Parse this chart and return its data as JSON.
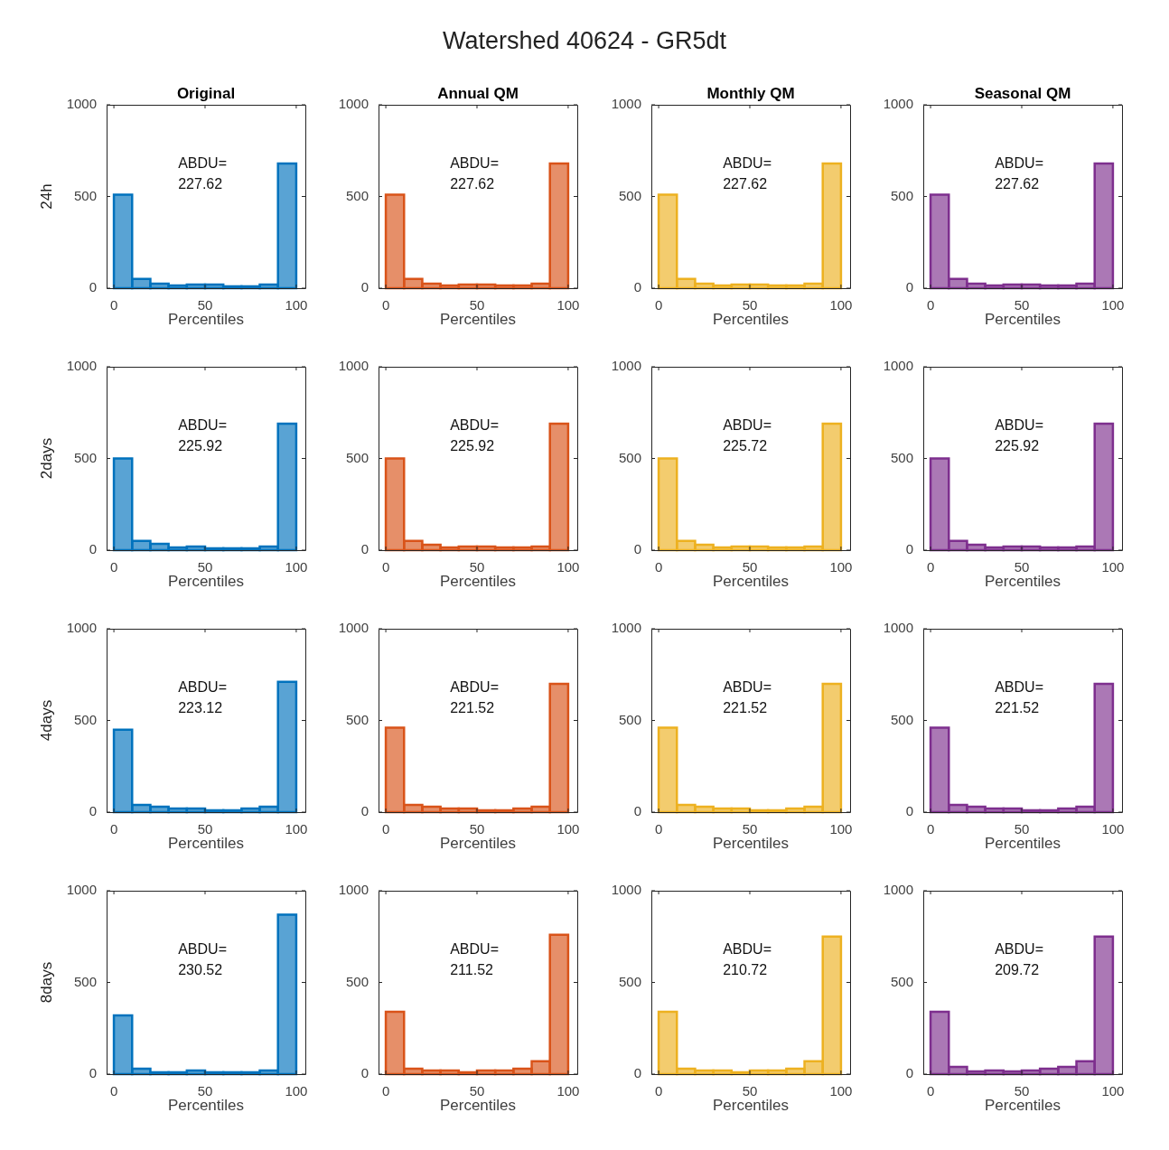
{
  "chart_data": [
    {
      "type": "other",
      "title": "Watershed 40624 - GR5dt"
    },
    {
      "type": "histogram",
      "title": "Original",
      "ylabel": "24h",
      "xlabel": "Percentiles",
      "color": "#0072bd",
      "bins": [
        0,
        10,
        20,
        30,
        40,
        50,
        60,
        70,
        80,
        90,
        100
      ],
      "values": [
        510,
        50,
        25,
        15,
        20,
        20,
        10,
        10,
        20,
        680
      ],
      "xlim": [
        -4,
        105
      ],
      "xticks": [
        0,
        50,
        100
      ],
      "ylim": [
        0,
        1000
      ],
      "yticks": [
        0,
        500,
        1000
      ],
      "annotations": [
        "ABDU=\n227.62"
      ]
    },
    {
      "type": "histogram",
      "title": "Annual QM",
      "xlabel": "Percentiles",
      "color": "#d95319",
      "bins": [
        0,
        10,
        20,
        30,
        40,
        50,
        60,
        70,
        80,
        90,
        100
      ],
      "values": [
        510,
        50,
        25,
        15,
        20,
        20,
        15,
        15,
        25,
        680
      ],
      "xlim": [
        -4,
        105
      ],
      "xticks": [
        0,
        50,
        100
      ],
      "ylim": [
        0,
        1000
      ],
      "yticks": [
        0,
        500,
        1000
      ],
      "annotations": [
        "ABDU=\n227.62"
      ]
    },
    {
      "type": "histogram",
      "title": "Monthly QM",
      "xlabel": "Percentiles",
      "color": "#edb120",
      "bins": [
        0,
        10,
        20,
        30,
        40,
        50,
        60,
        70,
        80,
        90,
        100
      ],
      "values": [
        510,
        50,
        25,
        15,
        20,
        20,
        15,
        15,
        25,
        680
      ],
      "xlim": [
        -4,
        105
      ],
      "xticks": [
        0,
        50,
        100
      ],
      "ylim": [
        0,
        1000
      ],
      "yticks": [
        0,
        500,
        1000
      ],
      "annotations": [
        "ABDU=\n227.62"
      ]
    },
    {
      "type": "histogram",
      "title": "Seasonal QM",
      "xlabel": "Percentiles",
      "color": "#7e2f8e",
      "bins": [
        0,
        10,
        20,
        30,
        40,
        50,
        60,
        70,
        80,
        90,
        100
      ],
      "values": [
        510,
        50,
        25,
        15,
        20,
        20,
        15,
        15,
        25,
        680
      ],
      "xlim": [
        -4,
        105
      ],
      "xticks": [
        0,
        50,
        100
      ],
      "ylim": [
        0,
        1000
      ],
      "yticks": [
        0,
        500,
        1000
      ],
      "annotations": [
        "ABDU=\n227.62"
      ]
    },
    {
      "type": "histogram",
      "ylabel": "2days",
      "xlabel": "Percentiles",
      "color": "#0072bd",
      "bins": [
        0,
        10,
        20,
        30,
        40,
        50,
        60,
        70,
        80,
        90,
        100
      ],
      "values": [
        500,
        50,
        35,
        15,
        20,
        10,
        10,
        10,
        20,
        690
      ],
      "xlim": [
        -4,
        105
      ],
      "xticks": [
        0,
        50,
        100
      ],
      "ylim": [
        0,
        1000
      ],
      "yticks": [
        0,
        500,
        1000
      ],
      "annotations": [
        "ABDU=\n225.92"
      ]
    },
    {
      "type": "histogram",
      "xlabel": "Percentiles",
      "color": "#d95319",
      "bins": [
        0,
        10,
        20,
        30,
        40,
        50,
        60,
        70,
        80,
        90,
        100
      ],
      "values": [
        500,
        50,
        30,
        15,
        20,
        20,
        15,
        15,
        20,
        690
      ],
      "xlim": [
        -4,
        105
      ],
      "xticks": [
        0,
        50,
        100
      ],
      "ylim": [
        0,
        1000
      ],
      "yticks": [
        0,
        500,
        1000
      ],
      "annotations": [
        "ABDU=\n225.92"
      ]
    },
    {
      "type": "histogram",
      "xlabel": "Percentiles",
      "color": "#edb120",
      "bins": [
        0,
        10,
        20,
        30,
        40,
        50,
        60,
        70,
        80,
        90,
        100
      ],
      "values": [
        500,
        50,
        30,
        15,
        20,
        20,
        15,
        15,
        20,
        690
      ],
      "xlim": [
        -4,
        105
      ],
      "xticks": [
        0,
        50,
        100
      ],
      "ylim": [
        0,
        1000
      ],
      "yticks": [
        0,
        500,
        1000
      ],
      "annotations": [
        "ABDU=\n225.72"
      ]
    },
    {
      "type": "histogram",
      "xlabel": "Percentiles",
      "color": "#7e2f8e",
      "bins": [
        0,
        10,
        20,
        30,
        40,
        50,
        60,
        70,
        80,
        90,
        100
      ],
      "values": [
        500,
        50,
        30,
        15,
        20,
        20,
        15,
        15,
        20,
        690
      ],
      "xlim": [
        -4,
        105
      ],
      "xticks": [
        0,
        50,
        100
      ],
      "ylim": [
        0,
        1000
      ],
      "yticks": [
        0,
        500,
        1000
      ],
      "annotations": [
        "ABDU=\n225.92"
      ]
    },
    {
      "type": "histogram",
      "ylabel": "4days",
      "xlabel": "Percentiles",
      "color": "#0072bd",
      "bins": [
        0,
        10,
        20,
        30,
        40,
        50,
        60,
        70,
        80,
        90,
        100
      ],
      "values": [
        450,
        40,
        30,
        20,
        20,
        10,
        10,
        20,
        30,
        710
      ],
      "xlim": [
        -4,
        105
      ],
      "xticks": [
        0,
        50,
        100
      ],
      "ylim": [
        0,
        1000
      ],
      "yticks": [
        0,
        500,
        1000
      ],
      "annotations": [
        "ABDU=\n223.12"
      ]
    },
    {
      "type": "histogram",
      "xlabel": "Percentiles",
      "color": "#d95319",
      "bins": [
        0,
        10,
        20,
        30,
        40,
        50,
        60,
        70,
        80,
        90,
        100
      ],
      "values": [
        460,
        40,
        30,
        20,
        20,
        10,
        10,
        20,
        30,
        700
      ],
      "xlim": [
        -4,
        105
      ],
      "xticks": [
        0,
        50,
        100
      ],
      "ylim": [
        0,
        1000
      ],
      "yticks": [
        0,
        500,
        1000
      ],
      "annotations": [
        "ABDU=\n221.52"
      ]
    },
    {
      "type": "histogram",
      "xlabel": "Percentiles",
      "color": "#edb120",
      "bins": [
        0,
        10,
        20,
        30,
        40,
        50,
        60,
        70,
        80,
        90,
        100
      ],
      "values": [
        460,
        40,
        30,
        20,
        20,
        10,
        10,
        20,
        30,
        700
      ],
      "xlim": [
        -4,
        105
      ],
      "xticks": [
        0,
        50,
        100
      ],
      "ylim": [
        0,
        1000
      ],
      "yticks": [
        0,
        500,
        1000
      ],
      "annotations": [
        "ABDU=\n221.52"
      ]
    },
    {
      "type": "histogram",
      "xlabel": "Percentiles",
      "color": "#7e2f8e",
      "bins": [
        0,
        10,
        20,
        30,
        40,
        50,
        60,
        70,
        80,
        90,
        100
      ],
      "values": [
        460,
        40,
        30,
        20,
        20,
        10,
        10,
        20,
        30,
        700
      ],
      "xlim": [
        -4,
        105
      ],
      "xticks": [
        0,
        50,
        100
      ],
      "ylim": [
        0,
        1000
      ],
      "yticks": [
        0,
        500,
        1000
      ],
      "annotations": [
        "ABDU=\n221.52"
      ]
    },
    {
      "type": "histogram",
      "ylabel": "8days",
      "xlabel": "Percentiles",
      "color": "#0072bd",
      "bins": [
        0,
        10,
        20,
        30,
        40,
        50,
        60,
        70,
        80,
        90,
        100
      ],
      "values": [
        320,
        30,
        10,
        10,
        20,
        10,
        10,
        10,
        20,
        870
      ],
      "xlim": [
        -4,
        105
      ],
      "xticks": [
        0,
        50,
        100
      ],
      "ylim": [
        0,
        1000
      ],
      "yticks": [
        0,
        500,
        1000
      ],
      "annotations": [
        "ABDU=\n230.52"
      ]
    },
    {
      "type": "histogram",
      "xlabel": "Percentiles",
      "color": "#d95319",
      "bins": [
        0,
        10,
        20,
        30,
        40,
        50,
        60,
        70,
        80,
        90,
        100
      ],
      "values": [
        340,
        30,
        20,
        20,
        10,
        20,
        20,
        30,
        70,
        760
      ],
      "xlim": [
        -4,
        105
      ],
      "xticks": [
        0,
        50,
        100
      ],
      "ylim": [
        0,
        1000
      ],
      "yticks": [
        0,
        500,
        1000
      ],
      "annotations": [
        "ABDU=\n211.52"
      ]
    },
    {
      "type": "histogram",
      "xlabel": "Percentiles",
      "color": "#edb120",
      "bins": [
        0,
        10,
        20,
        30,
        40,
        50,
        60,
        70,
        80,
        90,
        100
      ],
      "values": [
        340,
        30,
        20,
        20,
        10,
        20,
        20,
        30,
        70,
        750
      ],
      "xlim": [
        -4,
        105
      ],
      "xticks": [
        0,
        50,
        100
      ],
      "ylim": [
        0,
        1000
      ],
      "yticks": [
        0,
        500,
        1000
      ],
      "annotations": [
        "ABDU=\n210.72"
      ]
    },
    {
      "type": "histogram",
      "xlabel": "Percentiles",
      "color": "#7e2f8e",
      "bins": [
        0,
        10,
        20,
        30,
        40,
        50,
        60,
        70,
        80,
        90,
        100
      ],
      "values": [
        340,
        40,
        15,
        20,
        15,
        20,
        30,
        40,
        70,
        750
      ],
      "xlim": [
        -4,
        105
      ],
      "xticks": [
        0,
        50,
        100
      ],
      "ylim": [
        0,
        1000
      ],
      "yticks": [
        0,
        500,
        1000
      ],
      "annotations": [
        "ABDU=\n209.72"
      ]
    }
  ]
}
